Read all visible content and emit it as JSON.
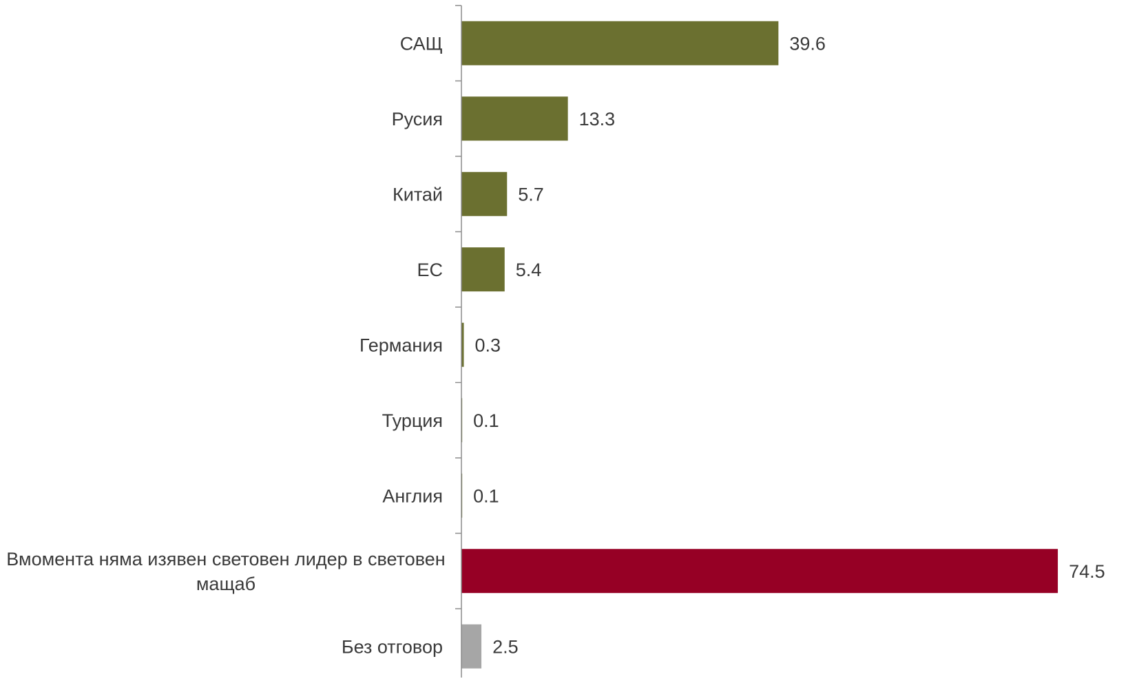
{
  "chart_data": {
    "type": "bar",
    "orientation": "horizontal",
    "categories": [
      "САЩ",
      "Русия",
      "Китай",
      "ЕС",
      "Германия",
      "Турция",
      "Англия",
      "Вмомента няма изявен световен лидер в световен мащаб",
      "Без отговор"
    ],
    "category_lines": [
      [
        "САЩ"
      ],
      [
        "Русия"
      ],
      [
        "Китай"
      ],
      [
        "ЕС"
      ],
      [
        "Германия"
      ],
      [
        "Турция"
      ],
      [
        "Англия"
      ],
      [
        "Вмомента няма изявен световен лидер в световен",
        "мащаб"
      ],
      [
        "Без отговор"
      ]
    ],
    "values": [
      39.6,
      13.3,
      5.7,
      5.4,
      0.3,
      0.1,
      0.1,
      74.5,
      2.5
    ],
    "value_labels": [
      "39.6",
      "13.3",
      "5.7",
      "5.4",
      "0.3",
      "0.1",
      "0.1",
      "74.5",
      "2.5"
    ],
    "bar_colors": [
      "#6b7030",
      "#6b7030",
      "#6b7030",
      "#6b7030",
      "#6b7030",
      "#6b7030",
      "#6b7030",
      "#960025",
      "#a6a6a6"
    ],
    "xlim": [
      0,
      80
    ],
    "grid": false,
    "legend": "none",
    "title": "",
    "xlabel": "",
    "ylabel": ""
  }
}
